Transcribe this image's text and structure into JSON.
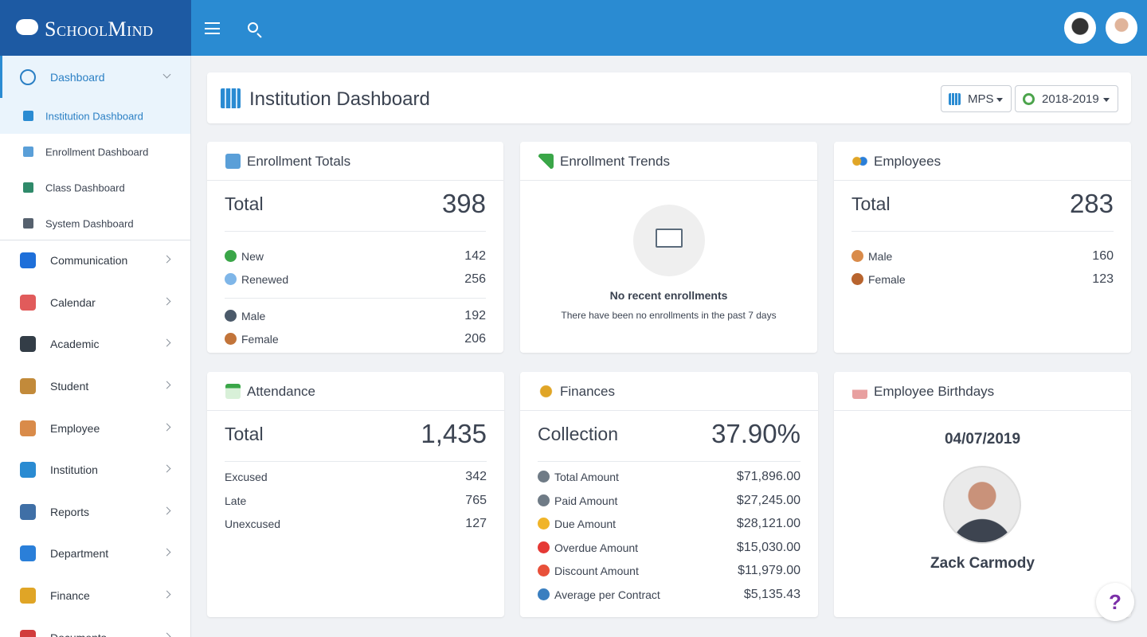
{
  "brand": "SchoolMind",
  "sidebar": {
    "dashboard": {
      "label": "Dashboard",
      "children": [
        "Institution Dashboard",
        "Enrollment Dashboard",
        "Class Dashboard",
        "System Dashboard"
      ]
    },
    "items": [
      "Communication",
      "Calendar",
      "Academic",
      "Student",
      "Employee",
      "Institution",
      "Reports",
      "Department",
      "Finance",
      "Documents"
    ]
  },
  "header": {
    "title": "Institution Dashboard",
    "buttons": [
      "MPS",
      "2018-2019"
    ]
  },
  "enrollment_totals": {
    "title": "Enrollment Totals",
    "total": {
      "label": "Total",
      "value": "398"
    },
    "groups": [
      [
        {
          "label": "New",
          "value": "142"
        },
        {
          "label": "Renewed",
          "value": "256"
        }
      ],
      [
        {
          "label": "Male",
          "value": "192"
        },
        {
          "label": "Female",
          "value": "206"
        }
      ]
    ]
  },
  "enrollment_trends": {
    "title": "Enrollment Trends",
    "empty_title": "No recent enrollments",
    "empty_text": "There have been no enrollments in the past 7 days"
  },
  "employees": {
    "title": "Employees",
    "total": {
      "label": "Total",
      "value": "283"
    },
    "groups": [
      [
        {
          "label": "Male",
          "value": "160"
        },
        {
          "label": "Female",
          "value": "123"
        }
      ]
    ]
  },
  "attendance": {
    "title": "Attendance",
    "total": {
      "label": "Total",
      "value": "1,435"
    },
    "groups": [
      [
        {
          "label": "Excused",
          "value": "342"
        },
        {
          "label": "Late",
          "value": "765"
        },
        {
          "label": "Unexcused",
          "value": "127"
        }
      ]
    ]
  },
  "finances": {
    "title": "Finances",
    "total": {
      "label": "Collection",
      "value": "37.90%"
    },
    "groups": [
      [
        {
          "label": "Total Amount",
          "value": "$71,896.00"
        },
        {
          "label": "Paid Amount",
          "value": "$27,245.00"
        },
        {
          "label": "Due Amount",
          "value": "$28,121.00"
        },
        {
          "label": "Overdue Amount",
          "value": "$15,030.00"
        },
        {
          "label": "Discount Amount",
          "value": "$11,979.00"
        },
        {
          "label": "Average per Contract",
          "value": "$5,135.43"
        }
      ]
    ]
  },
  "employee_birthdays": {
    "title": "Employee Birthdays",
    "date": "04/07/2019",
    "name": "Zack Carmody"
  },
  "help": "?"
}
